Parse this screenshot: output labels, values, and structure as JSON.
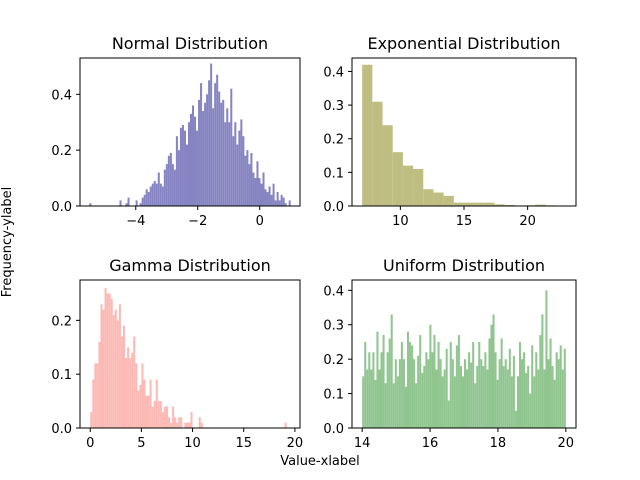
{
  "figure": {
    "xlabel": "Value-xlabel",
    "ylabel": "Frequency-ylabel"
  },
  "chart_data": [
    {
      "type": "bar",
      "title": "Normal Distribution",
      "color": "#8583c1",
      "xlim": [
        -5.8,
        1.3
      ],
      "ylim": [
        0,
        0.53
      ],
      "xticks": [
        -4,
        -2,
        0
      ],
      "xtick_labels": [
        "−4",
        "−2",
        "0"
      ],
      "yticks": [
        0.0,
        0.2,
        0.4
      ],
      "ytick_labels": [
        "0.0",
        "0.2",
        "0.4"
      ],
      "bin_start": -5.5,
      "bin_width": 0.065,
      "values": [
        0.01,
        0.0,
        0.0,
        0.0,
        0.0,
        0.0,
        0.0,
        0.0,
        0.0,
        0.0,
        0.0,
        0.0,
        0.0,
        0.0,
        0.0,
        0.02,
        0.0,
        0.0,
        0.01,
        0.03,
        0.0,
        0.0,
        0.0,
        0.02,
        0.0,
        0.01,
        0.03,
        0.04,
        0.06,
        0.05,
        0.07,
        0.08,
        0.09,
        0.08,
        0.12,
        0.08,
        0.07,
        0.13,
        0.15,
        0.18,
        0.19,
        0.15,
        0.13,
        0.25,
        0.2,
        0.28,
        0.29,
        0.27,
        0.22,
        0.3,
        0.33,
        0.36,
        0.32,
        0.27,
        0.38,
        0.44,
        0.34,
        0.37,
        0.4,
        0.45,
        0.51,
        0.35,
        0.44,
        0.47,
        0.41,
        0.37,
        0.38,
        0.3,
        0.35,
        0.3,
        0.42,
        0.25,
        0.3,
        0.22,
        0.27,
        0.31,
        0.25,
        0.18,
        0.2,
        0.15,
        0.19,
        0.12,
        0.1,
        0.16,
        0.1,
        0.08,
        0.12,
        0.06,
        0.05,
        0.07,
        0.04,
        0.08,
        0.02,
        0.05,
        0.02,
        0.04,
        0.03,
        0.01,
        0.0,
        0.02
      ]
    },
    {
      "type": "bar",
      "title": "Exponential Distribution",
      "color": "#bfbe82",
      "xlim": [
        6.2,
        23.8
      ],
      "ylim": [
        0,
        0.44
      ],
      "xticks": [
        10,
        15,
        20
      ],
      "xtick_labels": [
        "10",
        "15",
        "20"
      ],
      "yticks": [
        0.0,
        0.1,
        0.2,
        0.3,
        0.4
      ],
      "ytick_labels": [
        "0.0",
        "0.1",
        "0.2",
        "0.3",
        "0.4"
      ],
      "bin_start": 7.0,
      "bin_width": 0.8,
      "values": [
        0.42,
        0.31,
        0.24,
        0.16,
        0.12,
        0.11,
        0.05,
        0.04,
        0.03,
        0.01,
        0.01,
        0.01,
        0.01,
        0.005,
        0.003,
        0.001,
        0.002,
        0.004,
        0.002,
        0.0
      ]
    },
    {
      "type": "bar",
      "title": "Gamma Distribution",
      "color": "#fbbab5",
      "xlim": [
        -1.0,
        20.5
      ],
      "ylim": [
        0,
        0.275
      ],
      "xticks": [
        0,
        5,
        10,
        15,
        20
      ],
      "xtick_labels": [
        "0",
        "5",
        "10",
        "15",
        "20"
      ],
      "yticks": [
        0.0,
        0.1,
        0.2
      ],
      "ytick_labels": [
        "0.0",
        "0.1",
        "0.2"
      ],
      "bin_start": 0.0,
      "bin_width": 0.2,
      "values": [
        0.03,
        0.09,
        0.12,
        0.12,
        0.16,
        0.23,
        0.22,
        0.26,
        0.25,
        0.25,
        0.24,
        0.21,
        0.22,
        0.2,
        0.23,
        0.17,
        0.19,
        0.13,
        0.15,
        0.13,
        0.14,
        0.17,
        0.12,
        0.07,
        0.08,
        0.12,
        0.09,
        0.06,
        0.06,
        0.09,
        0.04,
        0.05,
        0.09,
        0.05,
        0.05,
        0.03,
        0.04,
        0.04,
        0.02,
        0.01,
        0.04,
        0.02,
        0.01,
        0.02,
        0.02,
        0.0,
        0.01,
        0.01,
        0.01,
        0.03,
        0.0,
        0.0,
        0.0,
        0.02,
        0.01,
        0.0,
        0.0,
        0.0,
        0.0,
        0.0,
        0.0,
        0.0,
        0.0,
        0.0,
        0.0,
        0.0,
        0.0,
        0.0,
        0.0,
        0.0,
        0.0,
        0.0,
        0.0,
        0.0,
        0.0,
        0.0,
        0.0,
        0.0,
        0.0,
        0.0,
        0.0,
        0.0,
        0.0,
        0.0,
        0.0,
        0.0,
        0.0,
        0.0,
        0.0,
        0.0,
        0.0,
        0.0,
        0.0,
        0.0,
        0.0,
        0.01,
        0.0,
        0.0,
        0.0,
        0.0
      ]
    },
    {
      "type": "bar",
      "title": "Uniform Distribution",
      "color": "#90c590",
      "xlim": [
        13.7,
        20.3
      ],
      "ylim": [
        0,
        0.43
      ],
      "xticks": [
        14,
        16,
        18,
        20
      ],
      "xtick_labels": [
        "14",
        "16",
        "18",
        "20"
      ],
      "yticks": [
        0.0,
        0.1,
        0.2,
        0.3,
        0.4
      ],
      "ytick_labels": [
        "0.0",
        "0.1",
        "0.2",
        "0.3",
        "0.4"
      ],
      "bin_start": 14.0,
      "bin_width": 0.06,
      "values": [
        0.15,
        0.25,
        0.17,
        0.22,
        0.17,
        0.22,
        0.14,
        0.28,
        0.17,
        0.22,
        0.27,
        0.13,
        0.22,
        0.26,
        0.33,
        0.13,
        0.2,
        0.15,
        0.2,
        0.25,
        0.2,
        0.12,
        0.28,
        0.25,
        0.24,
        0.2,
        0.13,
        0.21,
        0.27,
        0.16,
        0.18,
        0.22,
        0.2,
        0.3,
        0.22,
        0.27,
        0.17,
        0.25,
        0.2,
        0.15,
        0.17,
        0.23,
        0.08,
        0.25,
        0.2,
        0.15,
        0.24,
        0.27,
        0.18,
        0.15,
        0.2,
        0.17,
        0.22,
        0.19,
        0.25,
        0.13,
        0.18,
        0.25,
        0.2,
        0.18,
        0.22,
        0.17,
        0.26,
        0.3,
        0.33,
        0.22,
        0.14,
        0.2,
        0.26,
        0.18,
        0.2,
        0.17,
        0.23,
        0.15,
        0.21,
        0.05,
        0.15,
        0.25,
        0.2,
        0.22,
        0.16,
        0.18,
        0.1,
        0.24,
        0.15,
        0.22,
        0.17,
        0.27,
        0.33,
        0.17,
        0.4,
        0.2,
        0.26,
        0.18,
        0.14,
        0.22,
        0.2,
        0.24,
        0.17,
        0.23
      ]
    }
  ]
}
